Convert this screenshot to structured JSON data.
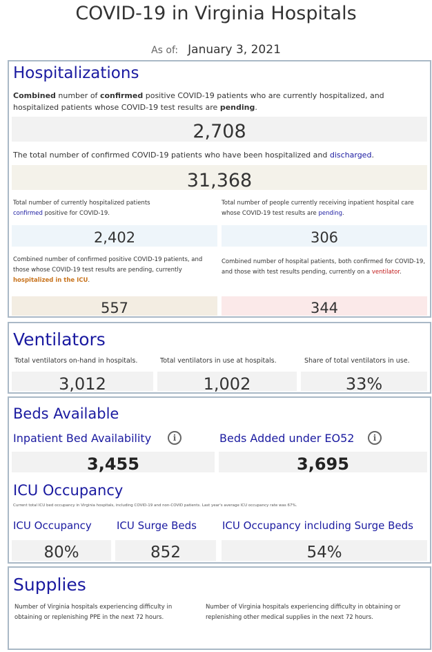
{
  "header": {
    "title": "COVID-19 in Virginia Hospitals",
    "as_of_label": "As of:",
    "as_of_date": "January 3, 2021"
  },
  "hospitalizations": {
    "title": "Hospitalizations",
    "combined_desc": [
      "Combined",
      " number of ",
      "confirmed",
      " positive COVID-19 patients who are currently hospitalized, and hospitalized patients whose COVID-19 test results are ",
      "pending",
      "."
    ],
    "combined_value": "2,708",
    "discharged_desc": [
      "The total number of confirmed COVID-19 patients who have been hospitalized and ",
      "discharged",
      "."
    ],
    "discharged_value": "31,368",
    "confirmed_desc": [
      "Total number of currently hospitalized patients ",
      "confirmed",
      " positive for COVID-19."
    ],
    "confirmed_value": "2,402",
    "pending_desc": [
      "Total number of people currently receiving inpatient hospital care whose COVID-19 test results are ",
      "pending",
      "."
    ],
    "pending_value": "306",
    "icu_desc": [
      "Combined number of confirmed positive COVID-19 patients, and those whose COVID-19 test results are pending, currently ",
      "hospitalized in the ICU",
      "."
    ],
    "icu_value": "557",
    "vent_desc": [
      "Combined number of hospital patients, both confirmed for COVID-19, and those with test results pending, currently on a ",
      "ventilator",
      "."
    ],
    "vent_value": "344"
  },
  "ventilators": {
    "title": "Ventilators",
    "labels": [
      "Total ventilators on-hand in hospitals.",
      "Total ventilators in use at hospitals.",
      "Share of total ventilators in use."
    ],
    "values": [
      "3,012",
      "1,002",
      "33%"
    ]
  },
  "beds": {
    "title": "Beds Available",
    "inpatient_label": "Inpatient Bed Availability",
    "inpatient_value": "3,455",
    "eo52_label": "Beds Added under EO52",
    "eo52_value": "3,695",
    "icu_title": "ICU Occupancy",
    "icu_note": "Current total ICU bed occupancy in Virginia hospitals, including COVID-19 and non-COVID patients. Last year's average ICU occupancy rate was 67%.",
    "icu_occupancy_label": "ICU Occupancy",
    "icu_occupancy_value": "80%",
    "surge_label": "ICU Surge Beds",
    "surge_value": "852",
    "icu_surge_label": "ICU Occupancy including Surge Beds",
    "icu_surge_value": "54%"
  },
  "supplies": {
    "title": "Supplies",
    "ppe_desc": "Number of Virginia hospitals experiencing difficulty in obtaining or replenishing PPE in the next 72 hours.",
    "other_desc": "Number of Virginia hospitals experiencing difficulty in obtaining or replenishing other medical supplies in the next 72 hours."
  },
  "colors": {
    "heading": "#1a1aa0",
    "box_gray": "#f2f2f2",
    "box_beige": "#f4f2ea",
    "box_blue": "#eef5fa",
    "box_tan": "#f3ede2",
    "box_pink": "#fbe9e9",
    "orange": "#c8741e",
    "red": "#c01818"
  },
  "icons": {
    "info": "info-circle-icon"
  }
}
